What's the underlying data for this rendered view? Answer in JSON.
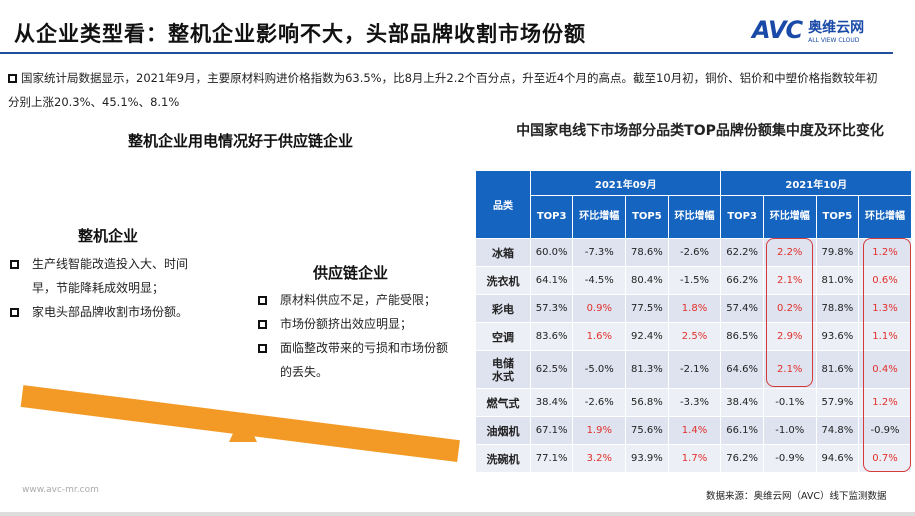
{
  "header": {
    "title": "从企业类型看：整机企业影响不大，头部品牌收割市场份额",
    "logo_text": "AVC",
    "logo_cn": "奥维云网",
    "logo_en": "ALL VIEW CLOUD"
  },
  "intro": "国家统计局数据显示，2021年9月，主要原材料购进价格指数为63.5%，比8月上升2.2个百分点，升至近4个月的高点。截至10月初，铜价、铝价和中塑价格指数较年初分别上涨20.3%、45.1%、8.1%",
  "left": {
    "heading": "整机企业用电情况好于供应链企业",
    "oem": {
      "title": "整机企业",
      "items": [
        "生产线智能改造投入大、时间早，节能降耗成效明显；",
        "家电头部品牌收割市场份额。"
      ]
    },
    "supply": {
      "title": "供应链企业",
      "items": [
        "原材料供应不足，产能受限；",
        "市场份额挤出效应明显；",
        "面临整改带来的亏损和市场份额的丢失。"
      ]
    }
  },
  "table": {
    "title": "中国家电线下市场部分品类TOP品牌份额集中度及环比变化",
    "cat_header": "品类",
    "periods": [
      "2021年09月",
      "2021年10月"
    ],
    "sub_headers": [
      "TOP3",
      "环比增幅",
      "TOP5",
      "环比增幅",
      "TOP3",
      "环比增幅",
      "TOP5",
      "环比增幅"
    ],
    "rows": [
      {
        "cat": "冰箱",
        "v": [
          "60.0%",
          "-7.3%",
          "78.6%",
          "-2.6%",
          "62.2%",
          "2.2%",
          "79.8%",
          "1.2%"
        ]
      },
      {
        "cat": "洗衣机",
        "v": [
          "64.1%",
          "-4.5%",
          "80.4%",
          "-1.5%",
          "66.2%",
          "2.1%",
          "81.0%",
          "0.6%"
        ]
      },
      {
        "cat": "彩电",
        "v": [
          "57.3%",
          "0.9%",
          "77.5%",
          "1.8%",
          "57.4%",
          "0.2%",
          "78.8%",
          "1.3%"
        ]
      },
      {
        "cat": "空调",
        "v": [
          "83.6%",
          "1.6%",
          "92.4%",
          "2.5%",
          "86.5%",
          "2.9%",
          "93.6%",
          "1.1%"
        ]
      },
      {
        "cat": "电储水式",
        "v": [
          "62.5%",
          "-5.0%",
          "81.3%",
          "-2.1%",
          "64.6%",
          "2.1%",
          "81.6%",
          "0.4%"
        ]
      },
      {
        "cat": "燃气式",
        "v": [
          "38.4%",
          "-2.6%",
          "56.8%",
          "-3.3%",
          "38.4%",
          "-0.1%",
          "57.9%",
          "1.2%"
        ]
      },
      {
        "cat": "油烟机",
        "v": [
          "67.1%",
          "1.9%",
          "75.6%",
          "1.4%",
          "66.1%",
          "-1.0%",
          "74.8%",
          "-0.9%"
        ]
      },
      {
        "cat": "洗碗机",
        "v": [
          "77.1%",
          "3.2%",
          "93.9%",
          "1.7%",
          "76.2%",
          "-0.9%",
          "94.6%",
          "0.7%"
        ]
      }
    ],
    "source": "数据来源：奥维云网（AVC）线下监测数据"
  },
  "footer": {
    "url": "www.avc-mr.com"
  },
  "colors": {
    "header_blue": "#1565c0",
    "accent_orange": "#f39a26",
    "positive_red": "#e0302a"
  }
}
